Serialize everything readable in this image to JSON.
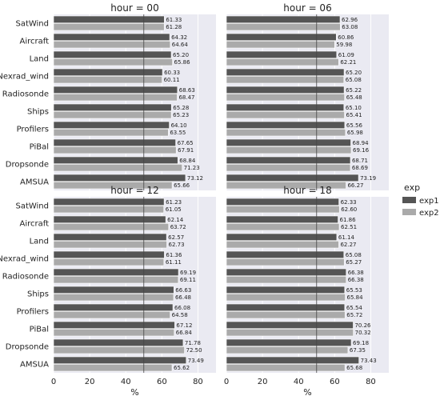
{
  "chart_data": {
    "type": "bar",
    "orientation": "horizontal",
    "categories": [
      "SatWind",
      "Aircraft",
      "Land",
      "Nexrad_wind",
      "Radiosonde",
      "Ships",
      "Profilers",
      "PiBal",
      "Dropsonde",
      "AMSUA"
    ],
    "xlabel": "%",
    "xlim": [
      0,
      90
    ],
    "xticks": [
      0,
      20,
      40,
      60,
      80
    ],
    "reference_line": 50,
    "grid": true,
    "legend": {
      "title": "exp",
      "placement": "right",
      "entries": [
        {
          "name": "exp1",
          "color": "#555555"
        },
        {
          "name": "exp2",
          "color": "#aaaaaa"
        }
      ]
    },
    "panels": [
      {
        "title": "hour = 00",
        "series": [
          {
            "name": "exp1",
            "values": [
              61.33,
              64.32,
              65.2,
              60.33,
              68.63,
              65.28,
              64.1,
              67.65,
              68.84,
              73.12
            ],
            "labels": [
              "61.33",
              "64.32",
              "65.20",
              "60.33",
              "68.63",
              "65.28",
              "64.10",
              "67.65",
              "68.84",
              "73.12"
            ]
          },
          {
            "name": "exp2",
            "values": [
              61.28,
              64.64,
              65.86,
              60.11,
              68.47,
              65.23,
              63.55,
              67.91,
              71.23,
              65.66
            ],
            "labels": [
              "61.28",
              "64.64",
              "65.86",
              "60.11",
              "68.47",
              "65.23",
              "63.55",
              "67.91",
              "71.23",
              "65.66"
            ]
          }
        ]
      },
      {
        "title": "hour = 06",
        "series": [
          {
            "name": "exp1",
            "values": [
              62.96,
              60.86,
              61.09,
              65.2,
              65.22,
              65.1,
              65.56,
              68.94,
              68.71,
              73.19
            ],
            "labels": [
              "62.96",
              "60.86",
              "61.09",
              "65.20",
              "65.22",
              "65.10",
              "65.56",
              "68.94",
              "68.71",
              "73.19"
            ]
          },
          {
            "name": "exp2",
            "values": [
              63.08,
              59.98,
              62.21,
              65.08,
              65.48,
              65.41,
              65.98,
              69.16,
              68.69,
              66.27
            ],
            "labels": [
              "63.08",
              "59.98",
              "62.21",
              "65.08",
              "65.48",
              "65.41",
              "65.98",
              "69.16",
              "68.69",
              "66.27"
            ]
          }
        ]
      },
      {
        "title": "hour = 12",
        "series": [
          {
            "name": "exp1",
            "values": [
              61.23,
              62.14,
              62.57,
              61.36,
              69.19,
              66.63,
              66.08,
              67.12,
              71.78,
              73.49
            ],
            "labels": [
              "61.23",
              "62.14",
              "62.57",
              "61.36",
              "69.19",
              "66.63",
              "66.08",
              "67.12",
              "71.78",
              "73.49"
            ]
          },
          {
            "name": "exp2",
            "values": [
              61.05,
              63.72,
              62.73,
              61.11,
              69.11,
              66.48,
              64.58,
              66.84,
              72.5,
              65.62
            ],
            "labels": [
              "61.05",
              "63.72",
              "62.73",
              "61.11",
              "69.11",
              "66.48",
              "64.58",
              "66.84",
              "72.50",
              "65.62"
            ]
          }
        ]
      },
      {
        "title": "hour = 18",
        "series": [
          {
            "name": "exp1",
            "values": [
              62.33,
              61.86,
              61.14,
              65.08,
              66.38,
              65.53,
              65.54,
              70.26,
              69.18,
              73.43
            ],
            "labels": [
              "62.33",
              "61.86",
              "61.14",
              "65.08",
              "66.38",
              "65.53",
              "65.54",
              "70.26",
              "69.18",
              "73.43"
            ]
          },
          {
            "name": "exp2",
            "values": [
              62.6,
              62.51,
              62.27,
              65.27,
              66.38,
              65.84,
              65.72,
              70.32,
              67.35,
              65.68
            ],
            "labels": [
              "62.60",
              "62.51",
              "62.27",
              "65.27",
              "66.38",
              "65.84",
              "65.72",
              "70.32",
              "67.35",
              "65.68"
            ]
          }
        ]
      }
    ],
    "colors": {
      "background": "#eaeaf2",
      "grid": "#ffffff",
      "reference_line": "#444444",
      "bar_edge": "#ffffff"
    }
  }
}
